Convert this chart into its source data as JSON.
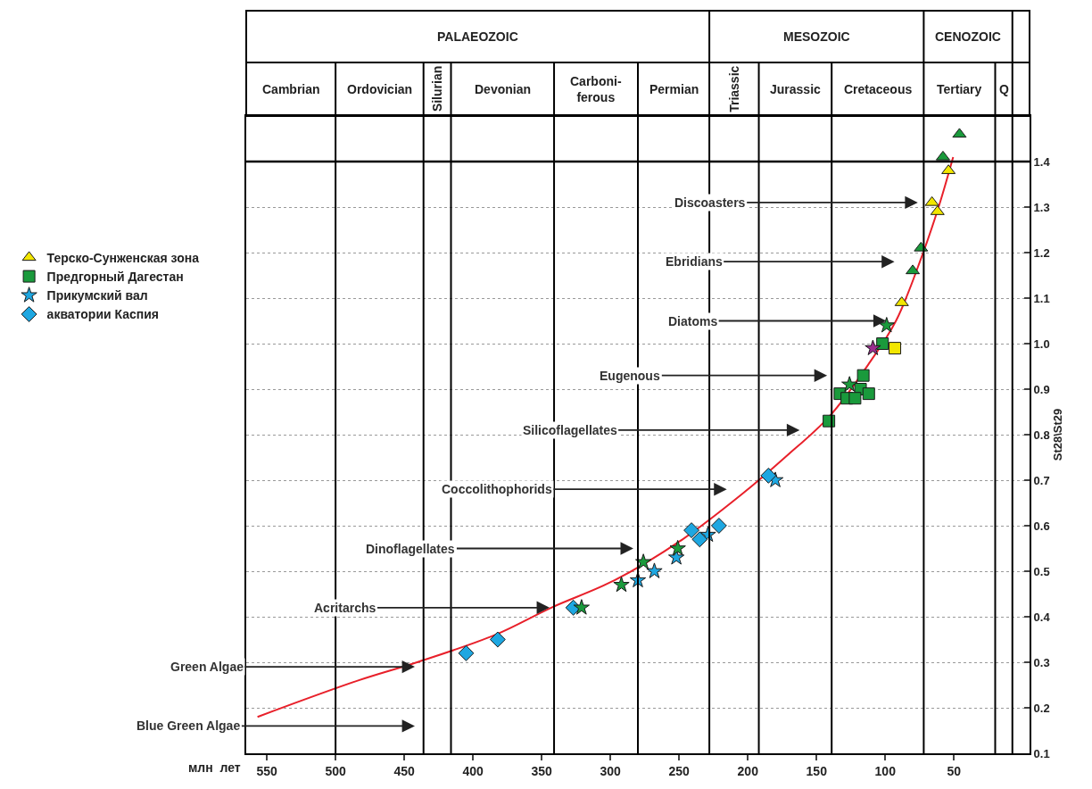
{
  "chart_data": {
    "type": "scatter",
    "xlabel": "млн  лет",
    "ylabel": "St28\\St29",
    "xlim": [
      565,
      -5
    ],
    "xticks": [
      550,
      500,
      450,
      400,
      350,
      300,
      250,
      200,
      150,
      100,
      50
    ],
    "ylim": [
      0.1,
      1.5
    ],
    "yticks": [
      0.1,
      0.2,
      0.3,
      0.4,
      0.5,
      0.6,
      0.7,
      0.8,
      0.9,
      {
        "value": 1.0,
        "label": "1.0"
      },
      1.1,
      1.2,
      1.3,
      1.4
    ],
    "grid": "y",
    "legend": "left",
    "series": [
      {
        "type": "line",
        "color": "#e8202a",
        "marker": "none",
        "x": [
          556.8,
          483.5,
          440.7,
          384,
          343,
          297,
          247.5,
          204,
          173,
          140.7,
          111,
          92.2,
          73.6,
          61.2,
          50.6
        ],
        "values": [
          0.18,
          0.26,
          0.3,
          0.36,
          0.42,
          0.48,
          0.57,
          0.67,
          0.75,
          0.84,
          0.96,
          1.05,
          1.19,
          1.3,
          1.41
        ]
      },
      {
        "name": "Терско-Сунженская зона",
        "color": "#f2e600",
        "marker": "triangle",
        "x": [
          54,
          66,
          62,
          88
        ],
        "values": [
          1.38,
          1.31,
          1.29,
          1.09
        ]
      },
      {
        "name": "Предгорный Дагестан",
        "color": "#1a9a3c",
        "marker": "square",
        "x": [
          141,
          116,
          118,
          112,
          133,
          128,
          122,
          102
        ],
        "values": [
          0.83,
          0.93,
          0.9,
          0.89,
          0.89,
          0.88,
          0.88,
          1.0
        ]
      },
      {
        "name": "Прикумский вал",
        "color": "#1ea7e1",
        "marker": "star",
        "x": [
          280,
          268,
          252,
          229,
          180
        ],
        "values": [
          0.48,
          0.5,
          0.53,
          0.58,
          0.7
        ]
      },
      {
        "name": "акватории Каспия",
        "color": "#1ea7e1",
        "marker": "diamond",
        "x": [
          405,
          382,
          327,
          241,
          221,
          235,
          185
        ],
        "values": [
          0.32,
          0.35,
          0.42,
          0.59,
          0.6,
          0.57,
          0.71
        ]
      },
      {
        "color": "#1a9a3c",
        "marker": "triangle",
        "x": [
          46,
          58,
          74,
          80
        ],
        "values": [
          1.46,
          1.41,
          1.21,
          1.16
        ]
      },
      {
        "color": "#1a9a3c",
        "marker": "star",
        "x": [
          292,
          321,
          251,
          276,
          99,
          126
        ],
        "values": [
          0.47,
          0.42,
          0.55,
          0.52,
          1.04,
          0.91
        ]
      },
      {
        "color": "#9b2d8f",
        "marker": "star",
        "x": [
          109
        ],
        "values": [
          0.99
        ]
      },
      {
        "color": "#f2e600",
        "marker": "square",
        "x": [
          93
        ],
        "values": [
          0.99
        ]
      }
    ],
    "ref_lines": [
      {
        "axis": "y",
        "value": 1.4
      },
      {
        "axis": "x",
        "value": 500
      },
      {
        "axis": "x",
        "value": 436
      },
      {
        "axis": "x",
        "value": 416
      },
      {
        "axis": "x",
        "value": 341
      },
      {
        "axis": "x",
        "value": 280
      },
      {
        "axis": "x",
        "value": 228
      },
      {
        "axis": "x",
        "value": 192
      },
      {
        "axis": "x",
        "value": 139
      },
      {
        "axis": "x",
        "value": 72
      },
      {
        "axis": "x",
        "value": 20
      },
      {
        "axis": "x",
        "value": 7.5
      }
    ],
    "annotations": [
      "PALAEOZOIC",
      "MESOZOIC",
      "CENOZOIC",
      "Cambrian",
      "Ordovician",
      "Silurian",
      "Devonian",
      "Carboni-\nferous",
      "Permian",
      "Triassic",
      "Jurassic",
      "Cretaceous",
      "Tertiary",
      "Q",
      {
        "text": "Discoasters",
        "x": 75,
        "y": 1.31
      },
      "Ebridians",
      {
        "text": "Diatoms",
        "x": 98,
        "y": 1.05
      },
      {
        "text": "Eugenous",
        "x": 141,
        "y": 0.93
      },
      "Silicoflagellates",
      "Coccolithophorids",
      {
        "text": "Dinoflagellates",
        "x": 282,
        "y": 0.55
      },
      {
        "text": "Acritarchs",
        "x": 343,
        "y": 0.42
      },
      {
        "text": "Green Algae",
        "x": 441,
        "y": 0.29
      },
      "Blue Green Algae"
    ]
  }
}
